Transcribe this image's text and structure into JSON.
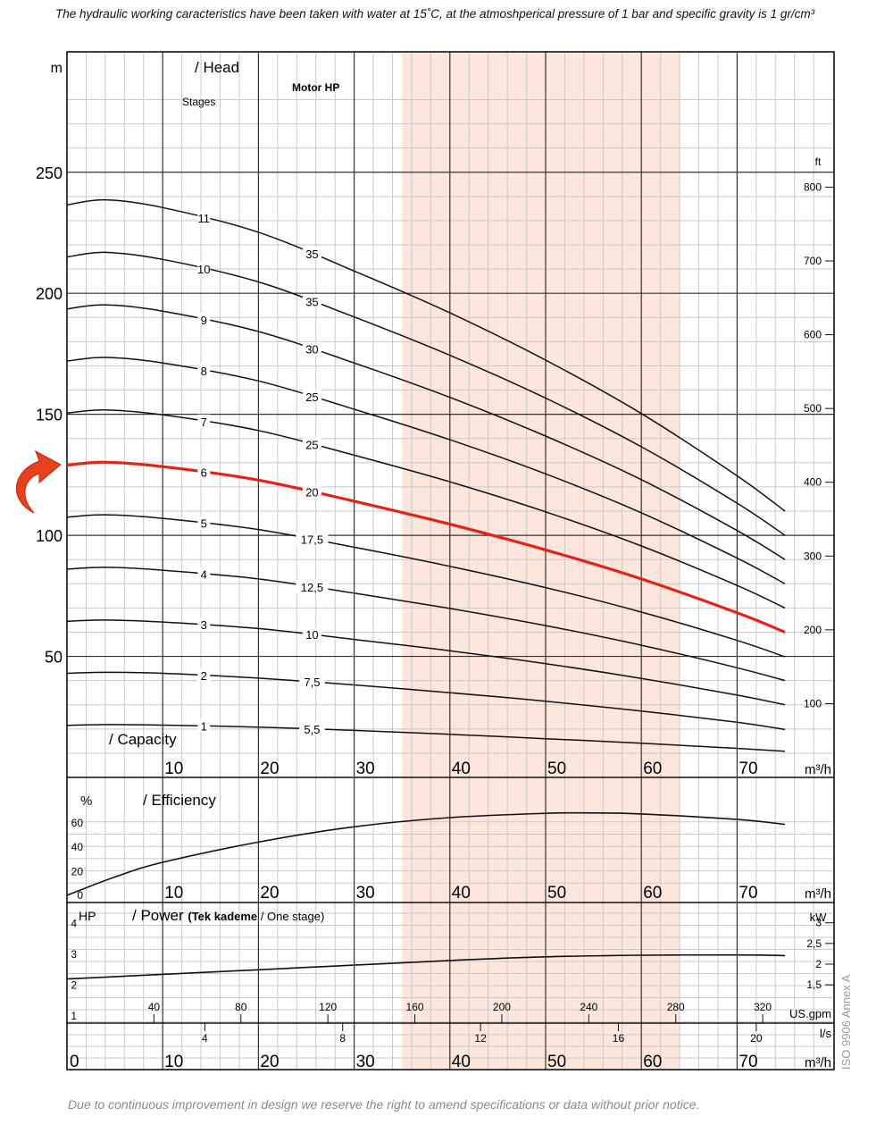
{
  "header_note": "The hydraulic working caracteristics have been taken with water at 15˚C, at the atmoshperical pressure of 1 bar and specific gravity is 1 gr/cm³",
  "footer_note": "Due to continuous improvement in design we reserve the right to amend specifications or data without prior notice.",
  "iso_note": "ISO 9906 Annex A",
  "colors": {
    "highlight_band": "#fde7dc",
    "grid_minor": "#c9c9c9",
    "grid_major": "#333333",
    "selected_curve": "#e2231a",
    "arrow": "#e8401c",
    "curve": "#111111"
  },
  "chart_data": {
    "type": "line",
    "x_unit": "m³/h",
    "x_ticks": [
      "10",
      "20",
      "30",
      "40",
      "50",
      "60",
      "70"
    ],
    "highlight_band_m3h": [
      35,
      64
    ],
    "head": {
      "title": "/ Head",
      "ylabel": "m",
      "stages_label": "Stages",
      "motor_label": "Motor HP",
      "y_ticks": [
        "50",
        "100",
        "150",
        "200",
        "250"
      ],
      "ylim": [
        0,
        300
      ],
      "ft_label": "ft",
      "ft_ticks": [
        "100",
        "200",
        "300",
        "400",
        "500",
        "600",
        "700",
        "800"
      ],
      "capacity_label": "/ Capacity",
      "x_unit_label": "m³/h",
      "x": [
        0,
        4,
        10,
        20,
        30,
        40,
        50,
        60,
        70,
        75
      ],
      "selected_stage": "6",
      "series": [
        {
          "name": "1",
          "motor": "5,5",
          "values": [
            21.5,
            21.8,
            21.6,
            20.8,
            19.4,
            17.8,
            16.0,
            14.1,
            12.0,
            10.8
          ]
        },
        {
          "name": "2",
          "motor": "7,5",
          "values": [
            43.0,
            43.4,
            43.0,
            41.0,
            38.2,
            35.0,
            31.5,
            27.4,
            22.8,
            19.8
          ]
        },
        {
          "name": "3",
          "motor": "10",
          "values": [
            64.5,
            65.0,
            64.2,
            61.5,
            57.0,
            52.3,
            47.0,
            40.9,
            34.0,
            30.0
          ]
        },
        {
          "name": "4",
          "motor": "12,5",
          "values": [
            86.0,
            86.8,
            85.6,
            82.0,
            76.1,
            69.8,
            62.7,
            54.6,
            45.3,
            40.0
          ]
        },
        {
          "name": "5",
          "motor": "17,5",
          "values": [
            107.5,
            108.5,
            107.0,
            102.4,
            95.1,
            87.2,
            78.4,
            68.3,
            56.6,
            49.8
          ]
        },
        {
          "name": "6",
          "motor": "20",
          "values": [
            129.0,
            130.2,
            128.4,
            122.8,
            114.1,
            104.6,
            94.0,
            82.0,
            68.0,
            60.0
          ]
        },
        {
          "name": "7",
          "motor": "25",
          "values": [
            150.5,
            151.8,
            149.8,
            143.3,
            133.1,
            122.1,
            109.7,
            95.6,
            79.3,
            70.0
          ]
        },
        {
          "name": "8",
          "motor": "25",
          "values": [
            172.0,
            173.5,
            171.2,
            163.8,
            152.1,
            139.5,
            125.4,
            109.3,
            90.6,
            80.0
          ]
        },
        {
          "name": "9",
          "motor": "30",
          "values": [
            193.5,
            195.2,
            192.6,
            184.2,
            171.2,
            157.0,
            141.0,
            123.0,
            102.0,
            90.0
          ]
        },
        {
          "name": "10",
          "motor": "35",
          "values": [
            215.0,
            216.9,
            214.0,
            204.7,
            190.2,
            174.4,
            156.7,
            136.6,
            113.3,
            100.0
          ]
        },
        {
          "name": "11",
          "motor": "35",
          "values": [
            236.5,
            238.6,
            235.4,
            225.2,
            209.2,
            191.9,
            172.4,
            150.3,
            124.6,
            110.0
          ]
        }
      ]
    },
    "efficiency": {
      "title": "/ Efficiency",
      "ylabel": "%",
      "y_ticks": [
        "0",
        "20",
        "40",
        "60"
      ],
      "ylim": [
        0,
        80
      ],
      "x_unit_label": "m³/h",
      "x": [
        0,
        5,
        10,
        20,
        30,
        40,
        50,
        55,
        60,
        70,
        75
      ],
      "values": [
        0,
        15,
        27,
        43.5,
        56,
        63.5,
        67,
        67.3,
        66.5,
        62,
        58
      ]
    },
    "power": {
      "title": "/ Power",
      "title_bold": "(Tek kademe",
      "title_rest": " / One stage)",
      "ylabel": "HP",
      "y_ticks": [
        "1",
        "2",
        "3",
        "4"
      ],
      "ylim": [
        0.7,
        4.3
      ],
      "kw_label": "kW",
      "kw_ticks": [
        "1,5",
        "2",
        "2,5",
        "3"
      ],
      "x": [
        0,
        10,
        20,
        30,
        40,
        50,
        60,
        70,
        75
      ],
      "values": [
        2.2,
        2.35,
        2.5,
        2.65,
        2.8,
        2.92,
        2.97,
        2.98,
        2.96
      ]
    },
    "gpm_axis": {
      "label": "US.gpm",
      "ticks": [
        "40",
        "80",
        "120",
        "160",
        "200",
        "240",
        "280",
        "320"
      ]
    },
    "ls_axis": {
      "label": "l/s",
      "ticks": [
        "4",
        "8",
        "12",
        "16",
        "20"
      ]
    },
    "bottom_axis": {
      "label": "m³/h",
      "ticks": [
        "0",
        "10",
        "20",
        "30",
        "40",
        "50",
        "60",
        "70"
      ]
    }
  }
}
